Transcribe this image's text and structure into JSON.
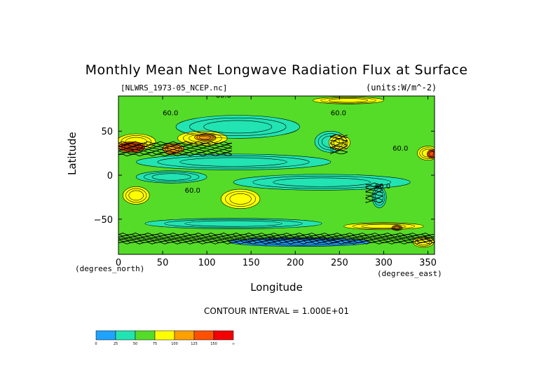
{
  "chart_data": {
    "type": "heatmap",
    "title": "Monthly Mean Net Longwave Radiation Flux at Surface",
    "subtitle_left": "[NLWRS_1973-05_NCEP.nc]",
    "subtitle_right": "(units:W/m^-2)",
    "xlabel": "Longitude",
    "ylabel": "Latitude",
    "x_units": "(degrees_east)",
    "y_units": "(degrees_north)",
    "xlim": [
      0,
      357.5
    ],
    "ylim": [
      -90,
      90
    ],
    "x_ticks": [
      0,
      50,
      100,
      150,
      200,
      250,
      300,
      350
    ],
    "y_ticks": [
      -50,
      0,
      50
    ],
    "contour_interval_text": "CONTOUR INTERVAL = 1.000E+01",
    "contour_labels": [
      "60.0",
      "60.0",
      "60.0",
      "60.0",
      "60.0",
      "60.0"
    ],
    "colorbar": {
      "levels": [
        "0",
        "25",
        "50",
        "75",
        "100",
        "125",
        "150",
        "∞"
      ],
      "colors": [
        "#1fa3ff",
        "#22e3b2",
        "#55dc28",
        "#ffff00",
        "#ff9f00",
        "#ff5000",
        "#f40000"
      ]
    },
    "regions": [
      {
        "kind": "background",
        "value": 50
      },
      {
        "kind": "ellipse",
        "lon": 135,
        "lat": 55,
        "rlon": 70,
        "rlat": 13,
        "value": 40
      },
      {
        "kind": "ellipse",
        "lon": 130,
        "lat": 15,
        "rlon": 110,
        "rlat": 9,
        "value": 40
      },
      {
        "kind": "ellipse",
        "lon": 230,
        "lat": -8,
        "rlon": 100,
        "rlat": 9,
        "value": 40
      },
      {
        "kind": "ellipse",
        "lon": 60,
        "lat": -2,
        "rlon": 40,
        "rlat": 7,
        "value": 40
      },
      {
        "kind": "ellipse",
        "lon": 240,
        "lat": 38,
        "rlon": 18,
        "rlat": 12,
        "value": 40
      },
      {
        "kind": "ellipse",
        "lon": 130,
        "lat": -55,
        "rlon": 100,
        "rlat": 6,
        "value": 40
      },
      {
        "kind": "ellipse",
        "lon": 205,
        "lat": -76,
        "rlon": 80,
        "rlat": 5,
        "value": 15
      },
      {
        "kind": "ellipse",
        "lon": 20,
        "lat": 38,
        "rlon": 22,
        "rlat": 9,
        "value": 80
      },
      {
        "kind": "ellipse",
        "lon": 95,
        "lat": 42,
        "rlon": 28,
        "rlat": 8,
        "value": 85
      },
      {
        "kind": "ellipse",
        "lon": 15,
        "lat": 32,
        "rlon": 15,
        "rlat": 6,
        "value": 130
      },
      {
        "kind": "ellipse",
        "lon": 62,
        "lat": 30,
        "rlon": 12,
        "rlat": 6,
        "value": 120
      },
      {
        "kind": "ellipse",
        "lon": 98,
        "lat": 43,
        "rlon": 12,
        "rlat": 4,
        "value": 110
      },
      {
        "kind": "ellipse",
        "lon": 250,
        "lat": 37,
        "rlon": 12,
        "rlat": 9,
        "value": 80
      },
      {
        "kind": "ellipse",
        "lon": 350,
        "lat": 25,
        "rlon": 12,
        "rlat": 8,
        "value": 80
      },
      {
        "kind": "ellipse",
        "lon": 355,
        "lat": 24,
        "rlon": 6,
        "rlat": 5,
        "value": 125
      },
      {
        "kind": "ellipse",
        "lon": 20,
        "lat": -23,
        "rlon": 15,
        "rlat": 10,
        "value": 80
      },
      {
        "kind": "ellipse",
        "lon": 138,
        "lat": -27,
        "rlon": 22,
        "rlat": 11,
        "value": 80
      },
      {
        "kind": "ellipse",
        "lon": 295,
        "lat": -25,
        "rlon": 8,
        "rlat": 12,
        "value": 40
      },
      {
        "kind": "ellipse",
        "lon": 300,
        "lat": -58,
        "rlon": 45,
        "rlat": 4,
        "value": 80
      },
      {
        "kind": "ellipse",
        "lon": 345,
        "lat": -76,
        "rlon": 12,
        "rlat": 6,
        "value": 80
      },
      {
        "kind": "ellipse",
        "lon": 260,
        "lat": 85,
        "rlon": 40,
        "rlat": 4,
        "value": 80
      },
      {
        "kind": "ellipse",
        "lon": 315,
        "lat": -60,
        "rlon": 6,
        "rlat": 3,
        "value": 100
      }
    ],
    "dense_contour_bands": [
      {
        "lon_start": 0,
        "lon_end": 130,
        "lat": 30,
        "lat_half": 7
      },
      {
        "lon_start": 0,
        "lon_end": 357.5,
        "lat": -72,
        "lat_half": 5
      },
      {
        "lon_start": 280,
        "lon_end": 300,
        "lat": -20,
        "lat_half": 10
      },
      {
        "lon_start": 240,
        "lon_end": 262,
        "lat": 35,
        "lat_half": 10
      }
    ]
  }
}
